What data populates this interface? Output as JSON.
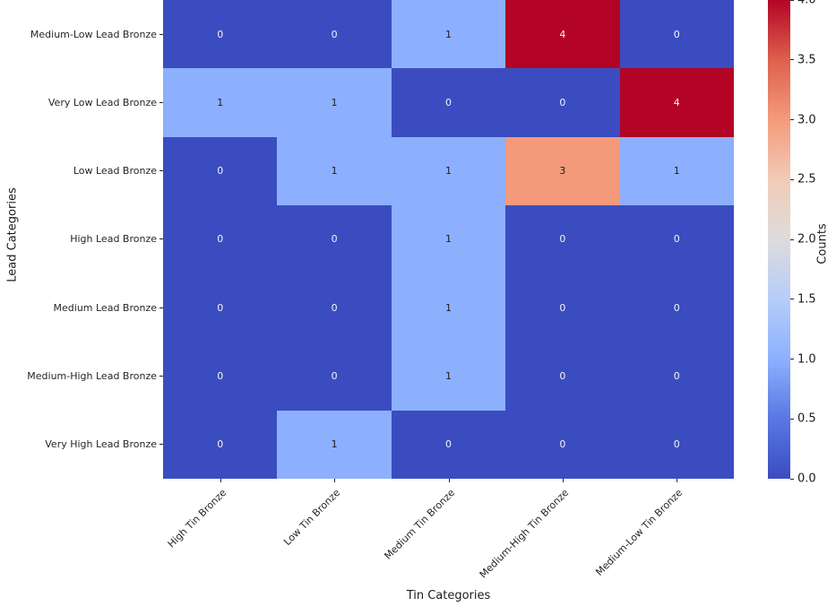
{
  "chart_data": {
    "type": "heatmap",
    "title": "",
    "xlabel": "Tin Categories",
    "ylabel": "Lead Categories",
    "x_categories": [
      "High Tin Bronze",
      "Low Tin Bronze",
      "Medium Tin Bronze",
      "Medium-High Tin Bronze",
      "Medium-Low Tin Bronze"
    ],
    "y_categories": [
      "Medium-Low Lead Bronze",
      "Very Low Lead Bronze",
      "Low Lead Bronze",
      "High Lead Bronze",
      "Medium Lead Bronze",
      "Medium-High Lead Bronze",
      "Very High Lead Bronze"
    ],
    "values": [
      [
        0,
        0,
        1,
        4,
        0
      ],
      [
        1,
        1,
        0,
        0,
        4
      ],
      [
        0,
        1,
        1,
        3,
        1
      ],
      [
        0,
        0,
        1,
        0,
        0
      ],
      [
        0,
        0,
        1,
        0,
        0
      ],
      [
        0,
        0,
        1,
        0,
        0
      ],
      [
        0,
        1,
        0,
        0,
        0
      ]
    ],
    "vmin": 0,
    "vmax": 4,
    "annotations_shown": true,
    "grid": false,
    "colorbar": {
      "label": "Counts",
      "ticks": [
        "0.0",
        "0.5",
        "1.0",
        "1.5",
        "2.0",
        "2.5",
        "3.0",
        "3.5",
        "4.0"
      ],
      "position": "right"
    },
    "colormap": {
      "name": "coolwarm",
      "stops": [
        "#3b4cc0",
        "#5977e3",
        "#8db0fe",
        "#b5cdfa",
        "#dddcdc",
        "#f2cbb7",
        "#f49a7a",
        "#dd604d",
        "#b40426"
      ]
    },
    "annot_colors": {
      "light_text": "#f5f5f5",
      "dark_text": "#1c1c1c",
      "dark_text_norm_range": [
        0.2,
        0.8
      ]
    }
  }
}
